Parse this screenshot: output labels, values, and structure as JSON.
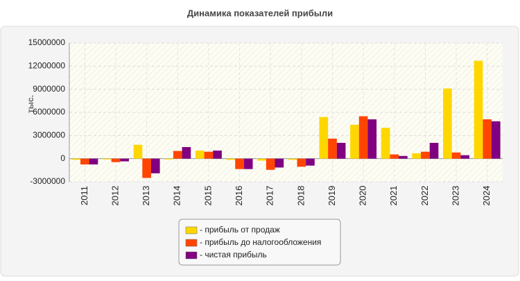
{
  "chart_data": {
    "type": "bar",
    "title": "Динамика показателей прибыли",
    "y_label": "тыс.",
    "categories": [
      "2011",
      "2012",
      "2013",
      "2014",
      "2015",
      "2016",
      "2017",
      "2018",
      "2019",
      "2020",
      "2021",
      "2022",
      "2023",
      "2024"
    ],
    "series": [
      {
        "name": "- прибыль от продаж",
        "color": "#ffd700",
        "values": [
          -150000,
          -100000,
          1800000,
          -100000,
          1050000,
          -150000,
          -250000,
          -150000,
          5400000,
          4400000,
          4000000,
          700000,
          9100000,
          12700000
        ]
      },
      {
        "name": "- прибыль до налогообложения",
        "color": "#ff4500",
        "values": [
          -750000,
          -450000,
          -2500000,
          1000000,
          900000,
          -1350000,
          -1450000,
          -1050000,
          2600000,
          5500000,
          550000,
          900000,
          800000,
          5100000
        ]
      },
      {
        "name": "- чистая прибыль",
        "color": "#800080",
        "values": [
          -750000,
          -350000,
          -1900000,
          1500000,
          1050000,
          -1350000,
          -1150000,
          -900000,
          2050000,
          5100000,
          350000,
          2050000,
          450000,
          4850000
        ]
      }
    ],
    "ylim": [
      -3000000,
      15000000
    ],
    "yticks": [
      -3000000,
      0,
      3000000,
      6000000,
      9000000,
      12000000,
      15000000
    ],
    "grid": true
  }
}
